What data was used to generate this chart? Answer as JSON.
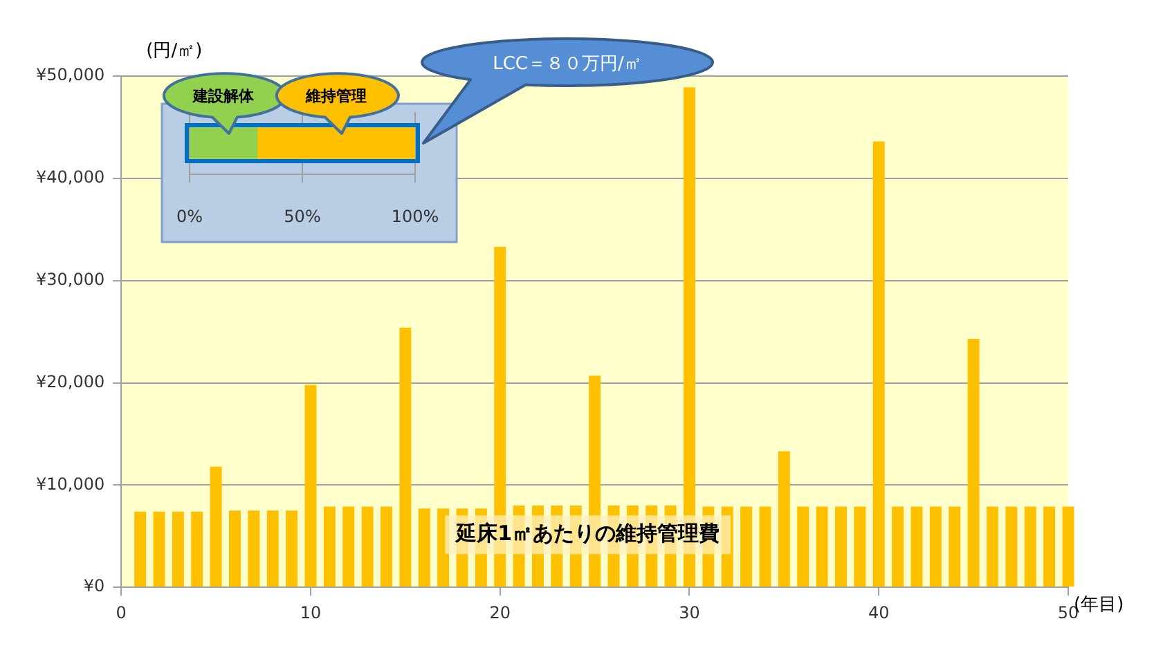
{
  "chart_data": [
    {
      "type": "bar",
      "xlabel": "(年目)",
      "ylabel": "(円/㎡)",
      "x": [
        1,
        2,
        3,
        4,
        5,
        6,
        7,
        8,
        9,
        10,
        11,
        12,
        13,
        14,
        15,
        16,
        17,
        18,
        19,
        20,
        21,
        22,
        23,
        24,
        25,
        26,
        27,
        28,
        29,
        30,
        31,
        32,
        33,
        34,
        35,
        36,
        37,
        38,
        39,
        40,
        41,
        42,
        43,
        44,
        45,
        46,
        47,
        48,
        49,
        50
      ],
      "series": [
        {
          "name": "延床1㎡あたりの維持管理費",
          "color": "#ffc000",
          "values": [
            7400,
            7400,
            7400,
            7400,
            11800,
            7500,
            7500,
            7500,
            7500,
            19800,
            7900,
            7900,
            7900,
            7900,
            25400,
            7700,
            7700,
            7700,
            7700,
            33300,
            8000,
            8000,
            8000,
            8000,
            20700,
            8000,
            8000,
            8000,
            8000,
            48900,
            7900,
            7900,
            7900,
            7900,
            13300,
            7900,
            7900,
            7900,
            7900,
            43600,
            7900,
            7900,
            7900,
            7900,
            24300,
            7900,
            7900,
            7900,
            7900,
            7900
          ]
        }
      ],
      "xlim": [
        0,
        50
      ],
      "xticks": [
        0,
        10,
        20,
        30,
        40,
        50
      ],
      "ylim": [
        0,
        50000
      ],
      "yticks": [
        {
          "value": 0,
          "label": "¥0"
        },
        {
          "value": 10000,
          "label": "¥10,000"
        },
        {
          "value": 20000,
          "label": "¥20,000"
        },
        {
          "value": 30000,
          "label": "¥30,000"
        },
        {
          "value": 40000,
          "label": "¥40,000"
        },
        {
          "value": 50000,
          "label": "¥50,000"
        }
      ],
      "grid": "y"
    },
    {
      "type": "bar",
      "orientation": "horizontal",
      "stacked": true,
      "categories": [
        null
      ],
      "series": [
        {
          "name": "建設解体",
          "color": "#92d050",
          "values": [
            30
          ]
        },
        {
          "name": "維持管理",
          "color": "#ffc000",
          "values": [
            70
          ]
        }
      ],
      "xlim": [
        0,
        100
      ],
      "xticks": [
        {
          "value": 0,
          "label": "0%"
        },
        {
          "value": 50,
          "label": "50%"
        },
        {
          "value": 100,
          "label": "100%"
        }
      ],
      "grid": "x",
      "annotations": [
        "LCC＝８０万円/㎡"
      ]
    }
  ]
}
